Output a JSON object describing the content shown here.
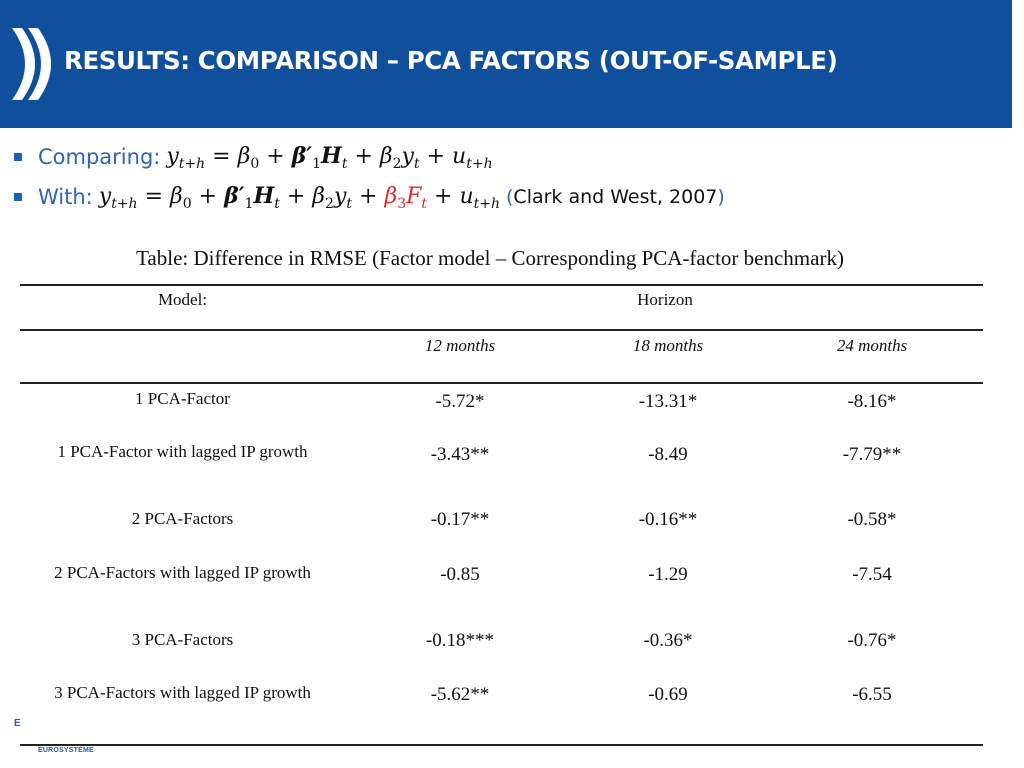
{
  "header": {
    "title": "RESULTS: COMPARISON – PCA FACTORS (OUT-OF-SAMPLE)"
  },
  "bullets": [
    {
      "lead": "Comparing:"
    },
    {
      "lead": "With:",
      "citation": "Clark and West, 2007",
      "paren_open": "(",
      "paren_close": ")"
    }
  ],
  "table": {
    "caption": "Table: Difference in RMSE (Factor model – Corresponding PCA-factor benchmark)",
    "model_header": "Model:",
    "horizon_header": "Horizon",
    "horizons": [
      "12 months",
      "18 months",
      "24 months"
    ],
    "rows": [
      {
        "model": "1 PCA-Factor",
        "values": [
          "-5.72*",
          "-13.31*",
          "-8.16*"
        ]
      },
      {
        "model": "1 PCA-Factor with lagged IP growth",
        "values": [
          "-3.43**",
          "-8.49",
          "-7.79**"
        ]
      },
      {
        "model": "2 PCA-Factors",
        "values": [
          "-0.17**",
          "-0.16**",
          "-0.58*"
        ]
      },
      {
        "model": "2 PCA-Factors with lagged IP growth",
        "values": [
          "-0.85",
          "-1.29",
          "-7.54"
        ]
      },
      {
        "model": "3 PCA-Factors",
        "values": [
          "-0.18***",
          "-0.36*",
          "-0.76*"
        ]
      },
      {
        "model": "3 PCA-Factors with lagged IP growth",
        "values": [
          "-5.62**",
          "-0.69",
          "-6.55"
        ]
      }
    ]
  },
  "footer": {
    "mark": "E",
    "text": "EUROSYSTÈME"
  },
  "colors": {
    "header_bg": "#0f4f9c",
    "accent_blue": "#2f64b2",
    "highlight_red": "#e02a2a"
  }
}
